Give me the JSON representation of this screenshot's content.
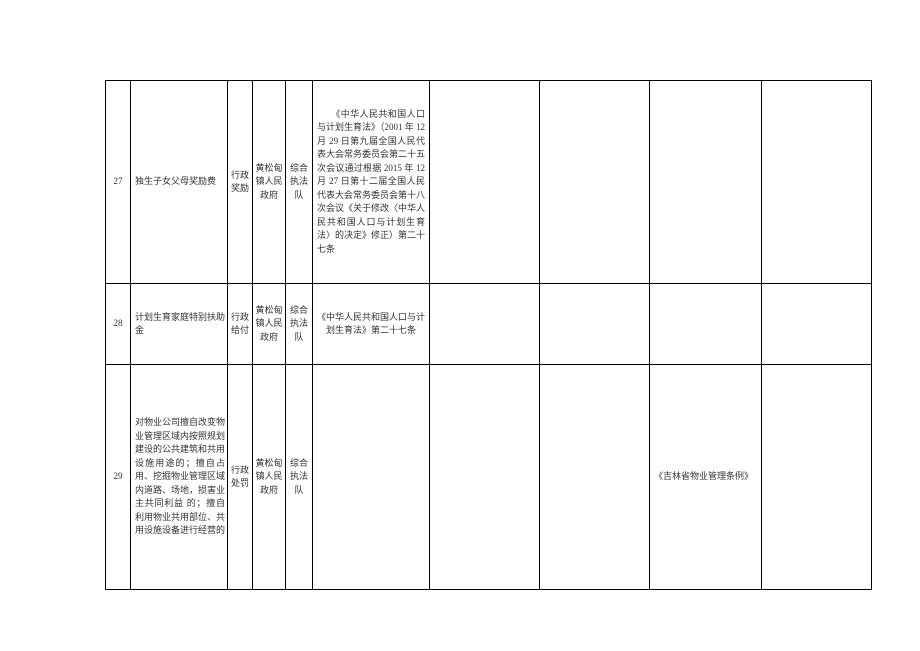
{
  "table": {
    "rows": [
      {
        "idx": "27",
        "name": "独生子女父母奖励费",
        "type": "行政奖励",
        "org": "黄松甸镇人民政府",
        "team": "综合执法队",
        "basis": "　　《中华人民共和国人口与计划生育法》（2001 年 12 月 29 日第九届全国人民代表大会常务委员会第二十五次会议通过根据 2015 年 12 月 27 日第十二届全国人民代表大会常务委员会第十八次会议《关于修改〈中华人民共和国人口与计划生育法〉的决定》修正）第二十七条",
        "c7": "",
        "c8": "",
        "c9": "",
        "c10": ""
      },
      {
        "idx": "28",
        "name": "计划生育家庭特别扶助金",
        "type": "行政给付",
        "org": "黄松甸镇人民政府",
        "team": "综合执法队",
        "basis": "《中华人民共和国人口与计划生育法》第二十七条",
        "c7": "",
        "c8": "",
        "c9": "",
        "c10": ""
      },
      {
        "idx": "29",
        "name": "对物业公司擅自改变物业管理区域内按照规划建设的公共建筑和共用设施用途的；擅自占用、挖掘物业管理区域内道路、场地，损害业主共同利益\n的；擅自利用物业共用部位、共用设施设备进行经营的",
        "type": "行政处罚",
        "org": "黄松甸镇人民政府",
        "team": "综合执法队",
        "basis": "",
        "c7": "",
        "c8": "",
        "c9": "《吉林省物业管理条例》",
        "c10": ""
      }
    ]
  },
  "style": {
    "background": "#ffffff",
    "border_color": "#000000",
    "text_color": "#333333",
    "font_size_pt": 7,
    "font_family": "SimSun"
  }
}
